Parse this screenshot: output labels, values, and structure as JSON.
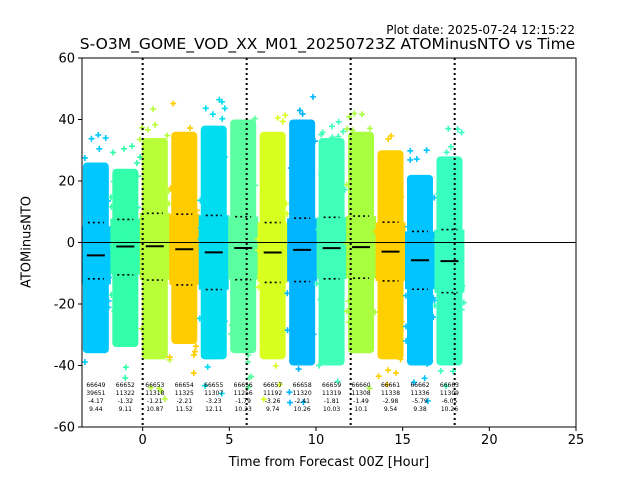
{
  "plot_date": "Plot date: 2025-07-24 12:15:22",
  "chart_data": {
    "type": "scatter",
    "title": "S-O3M_GOME_VOD_XX_M01_20250723Z ATOMinusNTO vs Time",
    "xlabel": "Time from Forecast 00Z [Hour]",
    "ylabel": "ATOMinusNTO",
    "xlim": [
      -3.5,
      25
    ],
    "ylim": [
      -60,
      60
    ],
    "xticks": [
      0,
      5,
      10,
      15,
      20,
      25
    ],
    "yticks": [
      -60,
      -40,
      -20,
      0,
      20,
      40,
      60
    ],
    "zero_line": 0,
    "vertical_dotted_lines_x": [
      0,
      6,
      12,
      18
    ],
    "grid": false,
    "groups": [
      {
        "x": -2.7,
        "orbit": "66649",
        "count": "39651",
        "mean": -4.17,
        "std": 9.44,
        "color": "#00c8ff",
        "p_hi": 6.5,
        "p_lo": -11.8,
        "ymin": -36,
        "ymax": 26
      },
      {
        "x": -1.0,
        "orbit": "66652",
        "count": "11322",
        "mean": -1.32,
        "std": 9.11,
        "color": "#33ffaa",
        "p_hi": 7.5,
        "p_lo": -10.5,
        "ymin": -34,
        "ymax": 24
      },
      {
        "x": 0.7,
        "orbit": "66653",
        "count": "11318",
        "mean": -1.21,
        "std": 10.87,
        "color": "#b8ff3a",
        "p_hi": 9.5,
        "p_lo": -12.2,
        "ymin": -38,
        "ymax": 34
      },
      {
        "x": 2.4,
        "orbit": "66654",
        "count": "11325",
        "mean": -2.21,
        "std": 11.52,
        "color": "#ffcc00",
        "p_hi": 9.2,
        "p_lo": -13.8,
        "ymin": -33,
        "ymax": 36
      },
      {
        "x": 4.1,
        "orbit": "66655",
        "count": "11307",
        "mean": -3.23,
        "std": 12.11,
        "color": "#00dcf0",
        "p_hi": 8.8,
        "p_lo": -15.3,
        "ymin": -38,
        "ymax": 38
      },
      {
        "x": 5.8,
        "orbit": "66656",
        "count": "11256",
        "mean": -1.79,
        "std": 10.23,
        "color": "#5cffa0",
        "p_hi": 8.4,
        "p_lo": -12.1,
        "ymin": -36,
        "ymax": 40
      },
      {
        "x": 7.5,
        "orbit": "66657",
        "count": "11192",
        "mean": -3.26,
        "std": 9.74,
        "color": "#d8ff20",
        "p_hi": 6.5,
        "p_lo": -13.0,
        "ymin": -38,
        "ymax": 36
      },
      {
        "x": 9.2,
        "orbit": "66658",
        "count": "11320",
        "mean": -2.41,
        "std": 10.26,
        "color": "#00b4ff",
        "p_hi": 7.9,
        "p_lo": -12.7,
        "ymin": -40,
        "ymax": 40
      },
      {
        "x": 10.9,
        "orbit": "66659",
        "count": "11319",
        "mean": -1.81,
        "std": 10.03,
        "color": "#40ffb8",
        "p_hi": 8.2,
        "p_lo": -11.8,
        "ymin": -40,
        "ymax": 34
      },
      {
        "x": 12.6,
        "orbit": "66660",
        "count": "11308",
        "mean": -1.49,
        "std": 10.1,
        "color": "#a8ff40",
        "p_hi": 8.6,
        "p_lo": -11.6,
        "ymin": -36,
        "ymax": 36
      },
      {
        "x": 14.3,
        "orbit": "66661",
        "count": "11338",
        "mean": -2.98,
        "std": 9.54,
        "color": "#ffd000",
        "p_hi": 6.6,
        "p_lo": -12.5,
        "ymin": -38,
        "ymax": 30
      },
      {
        "x": 16.0,
        "orbit": "66662",
        "count": "11336",
        "mean": -5.79,
        "std": 9.38,
        "color": "#00c4ff",
        "p_hi": 3.6,
        "p_lo": -15.2,
        "ymin": -40,
        "ymax": 22
      },
      {
        "x": 17.7,
        "orbit": "66663",
        "count": "11309",
        "mean": -6.05,
        "std": 10.26,
        "color": "#38ffc0",
        "p_hi": 4.2,
        "p_lo": -16.3,
        "ymin": -40,
        "ymax": 28
      }
    ]
  }
}
